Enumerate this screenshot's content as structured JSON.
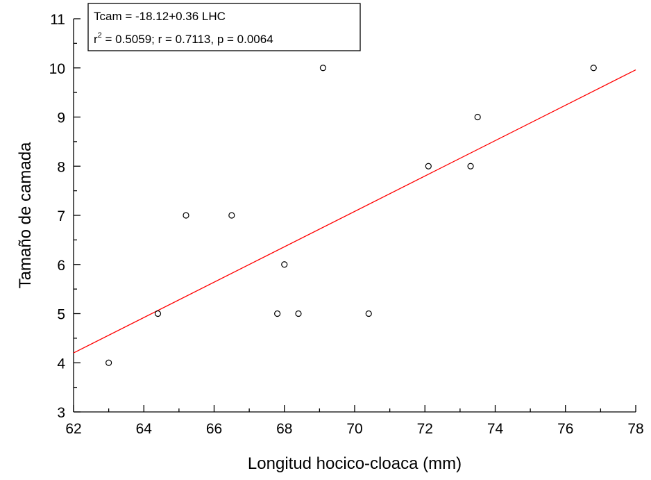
{
  "chart_data": {
    "type": "scatter",
    "xlabel": "Longitud hocico-cloaca (mm)",
    "ylabel": "Tamaño de camada",
    "xlim": [
      62,
      78
    ],
    "ylim": [
      3,
      11
    ],
    "x_ticks": [
      62,
      64,
      66,
      68,
      70,
      72,
      74,
      76,
      78
    ],
    "y_ticks": [
      3,
      4,
      5,
      6,
      7,
      8,
      9,
      10,
      11
    ],
    "grid": false,
    "points": [
      {
        "x": 63.0,
        "y": 4
      },
      {
        "x": 64.4,
        "y": 5
      },
      {
        "x": 65.2,
        "y": 7
      },
      {
        "x": 66.5,
        "y": 7
      },
      {
        "x": 67.8,
        "y": 5
      },
      {
        "x": 68.0,
        "y": 6
      },
      {
        "x": 68.4,
        "y": 5
      },
      {
        "x": 69.1,
        "y": 10
      },
      {
        "x": 70.4,
        "y": 5
      },
      {
        "x": 72.1,
        "y": 8
      },
      {
        "x": 73.3,
        "y": 8
      },
      {
        "x": 73.5,
        "y": 9
      },
      {
        "x": 76.8,
        "y": 10
      }
    ],
    "regression": {
      "intercept": -18.12,
      "slope": 0.36,
      "color": "#ff0000"
    },
    "annotation": {
      "equation": "Tcam = -18.12+0.36 LHC",
      "r_label": "r",
      "r_sup": "2",
      "stats": " = 0.5059; r = 0.7113, p = 0.0064",
      "placement": "top-left"
    },
    "marker": "open-circle"
  }
}
